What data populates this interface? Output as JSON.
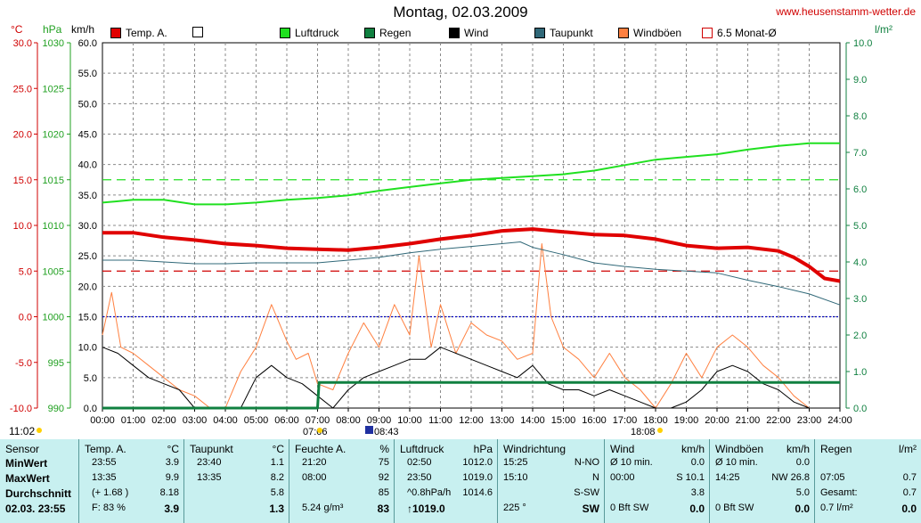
{
  "title": "Montag, 02.03.2009",
  "site": "www.heusenstamm-wetter.de",
  "axis_units": {
    "temp": "°C",
    "pressure": "hPa",
    "wind": "km/h",
    "rain": "l/m²"
  },
  "legend": [
    {
      "label": "Temp. A.",
      "color": "#e00000",
      "hollow": false
    },
    {
      "label": "",
      "color": "#ffffff",
      "hollow": false
    },
    {
      "label": "Luftdruck",
      "color": "#20e020",
      "hollow": false
    },
    {
      "label": "Regen",
      "color": "#108040",
      "hollow": false
    },
    {
      "label": "Wind",
      "color": "#000000",
      "hollow": false
    },
    {
      "label": "Taupunkt",
      "color": "#306878",
      "hollow": false
    },
    {
      "label": "Windböen",
      "color": "#ff8040",
      "hollow": false
    },
    {
      "label": "6.5 Monat-Ø",
      "color": "#d00000",
      "hollow": true
    }
  ],
  "markers": {
    "left_time": "11:02",
    "sunrise": "07:06",
    "noon": "08:43",
    "sunset": "18:08"
  },
  "chart_data": {
    "type": "line",
    "title": "Montag, 02.03.2009",
    "x_ticks": [
      "00:00",
      "01:00",
      "02:00",
      "03:00",
      "04:00",
      "05:00",
      "06:00",
      "07:00",
      "08:00",
      "09:00",
      "10:00",
      "11:00",
      "12:00",
      "13:00",
      "14:00",
      "15:00",
      "16:00",
      "17:00",
      "18:00",
      "19:00",
      "20:00",
      "21:00",
      "22:00",
      "23:00",
      "24:00"
    ],
    "xlim": [
      0,
      24
    ],
    "temp_axis": {
      "ticks": [
        "30.0",
        "25.0",
        "20.0",
        "15.0",
        "10.0",
        "5.0",
        "0.0",
        "-5.0",
        "-10.0"
      ],
      "ylim": [
        -10,
        30
      ]
    },
    "pressure_axis": {
      "ticks": [
        "1030",
        "1025",
        "1020",
        "1015",
        "1010",
        "1005",
        "1000",
        "995",
        "990"
      ],
      "ylim": [
        990,
        1030
      ]
    },
    "wind_axis": {
      "ticks": [
        "60.0",
        "55.0",
        "50.0",
        "45.0",
        "40.0",
        "35.0",
        "30.0",
        "25.0",
        "20.0",
        "15.0",
        "10.0",
        "5.0",
        "0.0"
      ],
      "ylim": [
        0,
        60
      ]
    },
    "rain_axis": {
      "ticks": [
        "10.0",
        "9.0",
        "8.0",
        "7.0",
        "6.0",
        "5.0",
        "4.0",
        "3.0",
        "2.0",
        "1.0",
        "0.0"
      ],
      "ylim": [
        0,
        10
      ]
    },
    "grid": true,
    "series": [
      {
        "name": "Temp. A.",
        "color": "#e00000",
        "axis": "temp",
        "x": [
          0,
          1,
          2,
          3,
          4,
          5,
          6,
          7,
          8,
          9,
          10,
          11,
          12,
          13,
          14,
          15,
          16,
          17,
          18,
          19,
          20,
          21,
          22,
          22.5,
          23,
          23.5,
          24
        ],
        "y": [
          9.2,
          9.2,
          8.7,
          8.4,
          8.0,
          7.8,
          7.5,
          7.4,
          7.3,
          7.6,
          8.0,
          8.5,
          8.9,
          9.4,
          9.6,
          9.3,
          9.0,
          8.9,
          8.5,
          7.8,
          7.5,
          7.6,
          7.2,
          6.5,
          5.5,
          4.2,
          3.9
        ]
      },
      {
        "name": "Luftdruck",
        "color": "#20e020",
        "axis": "pressure",
        "x": [
          0,
          1,
          2,
          3,
          4,
          5,
          6,
          7,
          8,
          9,
          10,
          11,
          12,
          13,
          14,
          15,
          16,
          17,
          18,
          19,
          20,
          21,
          22,
          23,
          24
        ],
        "y": [
          1012.5,
          1012.8,
          1012.8,
          1012.3,
          1012.3,
          1012.5,
          1012.8,
          1013.0,
          1013.3,
          1013.8,
          1014.2,
          1014.6,
          1015.0,
          1015.2,
          1015.4,
          1015.6,
          1016.0,
          1016.6,
          1017.2,
          1017.5,
          1017.8,
          1018.3,
          1018.7,
          1019.0,
          1019.0
        ]
      },
      {
        "name": "Taupunkt",
        "color": "#306878",
        "axis": "temp",
        "x": [
          0,
          1,
          2,
          3,
          4,
          5,
          6,
          7,
          8,
          9,
          10,
          11,
          12,
          13,
          13.6,
          14,
          15,
          16,
          17,
          18,
          19,
          20,
          21,
          22,
          23,
          24
        ],
        "y": [
          6.2,
          6.2,
          6.0,
          5.8,
          5.8,
          5.9,
          5.9,
          5.9,
          6.2,
          6.5,
          7.0,
          7.4,
          7.7,
          8.0,
          8.2,
          7.6,
          6.8,
          5.9,
          5.5,
          5.2,
          5.0,
          4.8,
          4.0,
          3.3,
          2.5,
          1.3
        ]
      },
      {
        "name": "Wind",
        "color": "#000000",
        "axis": "wind",
        "x": [
          0,
          0.5,
          1,
          1.5,
          2,
          2.5,
          3,
          3.5,
          4,
          4.5,
          5,
          5.5,
          6,
          6.5,
          7,
          7.5,
          8,
          8.5,
          9,
          9.5,
          10,
          10.5,
          11,
          11.5,
          12,
          12.5,
          13,
          13.5,
          14,
          14.5,
          15,
          15.5,
          16,
          16.5,
          17,
          17.5,
          18,
          18.5,
          19,
          19.5,
          20,
          20.5,
          21,
          21.5,
          22,
          22.5,
          23
        ],
        "y": [
          10,
          9,
          7,
          5,
          4,
          3,
          0,
          0,
          0,
          0,
          5,
          7,
          5,
          4,
          2,
          0,
          3,
          5,
          6,
          7,
          8,
          8,
          10,
          9,
          8,
          7,
          6,
          5,
          7,
          4,
          3,
          3,
          2,
          3,
          2,
          1,
          0,
          0,
          1,
          3,
          6,
          7,
          6,
          4,
          3,
          1,
          0
        ]
      },
      {
        "name": "Windböen",
        "color": "#ff8040",
        "axis": "wind",
        "x": [
          0,
          0.3,
          0.6,
          1,
          1.5,
          2,
          2.5,
          3,
          3.5,
          4,
          4.5,
          5,
          5.5,
          6,
          6.3,
          6.7,
          7,
          7.5,
          8,
          8.5,
          9,
          9.5,
          10,
          10.3,
          10.7,
          11,
          11.5,
          12,
          12.5,
          13,
          13.5,
          14,
          14.3,
          14.6,
          15,
          15.5,
          16,
          16.5,
          17,
          17.5,
          18,
          18.5,
          19,
          19.5,
          20,
          20.5,
          21,
          21.5,
          22,
          22.5,
          23
        ],
        "y": [
          12,
          19,
          10,
          9,
          7,
          5,
          3,
          2,
          0,
          0,
          6,
          10,
          17,
          11,
          8,
          9,
          4,
          3,
          9,
          14,
          10,
          17,
          12,
          25,
          10,
          17,
          9,
          14,
          12,
          11,
          8,
          9,
          27,
          15,
          10,
          8,
          5,
          9,
          5,
          3,
          0,
          4,
          9,
          5,
          10,
          12,
          10,
          7,
          5,
          2,
          0
        ]
      },
      {
        "name": "Regen",
        "color": "#108040",
        "axis": "rain",
        "x": [
          0,
          7.0,
          7.05,
          24
        ],
        "y": [
          0,
          0,
          0.7,
          0.7
        ]
      }
    ],
    "reference_lines": [
      {
        "name": "Temp 6.5 Monat-Ø",
        "axis": "temp",
        "value": 5.0,
        "color": "#d00000",
        "style": "dash"
      },
      {
        "name": "Luftdruck Ø",
        "axis": "pressure",
        "value": 1015.0,
        "color": "#20e020",
        "style": "dash"
      },
      {
        "name": "0 °C",
        "axis": "temp",
        "value": 0.0,
        "color": "#0000c0",
        "style": "dot"
      }
    ]
  },
  "stats": {
    "sensor": {
      "header": "Sensor",
      "rows": [
        "MinWert",
        "MaxWert",
        "Durchschnitt",
        "02.03.  23:55"
      ]
    },
    "temp": {
      "header": "Temp. A.",
      "unit": "°C",
      "rows": [
        [
          "23:55",
          "3.9"
        ],
        [
          "13:35",
          "9.9"
        ],
        [
          "(+ 1.68 )",
          "8.18"
        ],
        [
          "F: 83 %",
          "3.9"
        ]
      ]
    },
    "taupunkt": {
      "header": "Taupunkt",
      "unit": "°C",
      "rows": [
        [
          "23:40",
          "1.1"
        ],
        [
          "13:35",
          "8.2"
        ],
        [
          "",
          "5.8"
        ],
        [
          "",
          "1.3"
        ]
      ]
    },
    "feuchte": {
      "header": "Feuchte A.",
      "unit": "%",
      "rows": [
        [
          "21:20",
          "75"
        ],
        [
          "08:00",
          "92"
        ],
        [
          "",
          "85"
        ],
        [
          "5.24 g/m³",
          "83"
        ]
      ]
    },
    "luftdruck": {
      "header": "Luftdruck",
      "unit": "hPa",
      "rows": [
        [
          "02:50",
          "1012.0"
        ],
        [
          "23:50",
          "1019.0"
        ],
        [
          "^0.8hPa/h",
          "1014.6"
        ],
        [
          "↑1019.0",
          ""
        ]
      ]
    },
    "windrichtung": {
      "header": "Windrichtung",
      "unit": "",
      "rows": [
        [
          "15:25",
          "N-NO"
        ],
        [
          "15:10",
          "N"
        ],
        [
          "",
          "S-SW"
        ],
        [
          "225 °",
          "SW"
        ]
      ]
    },
    "wind": {
      "header": "Wind",
      "unit": "km/h",
      "rows": [
        [
          "Ø 10 min.",
          "0.0"
        ],
        [
          "00:00",
          "S 10.1"
        ],
        [
          "",
          "3.8"
        ],
        [
          "0 Bft SW",
          "0.0"
        ]
      ]
    },
    "windboeen": {
      "header": "Windböen",
      "unit": "km/h",
      "rows": [
        [
          "Ø 10 min.",
          "0.0"
        ],
        [
          "14:25",
          "NW 26.8"
        ],
        [
          "",
          "5.0"
        ],
        [
          "0 Bft SW",
          "0.0"
        ]
      ]
    },
    "regen": {
      "header": "Regen",
      "unit": "l/m²",
      "rows": [
        [
          "",
          ""
        ],
        [
          "07:05",
          "0.7"
        ],
        [
          "Gesamt:",
          "0.7"
        ],
        [
          "0.7 l/m²",
          "0.0"
        ]
      ]
    }
  }
}
